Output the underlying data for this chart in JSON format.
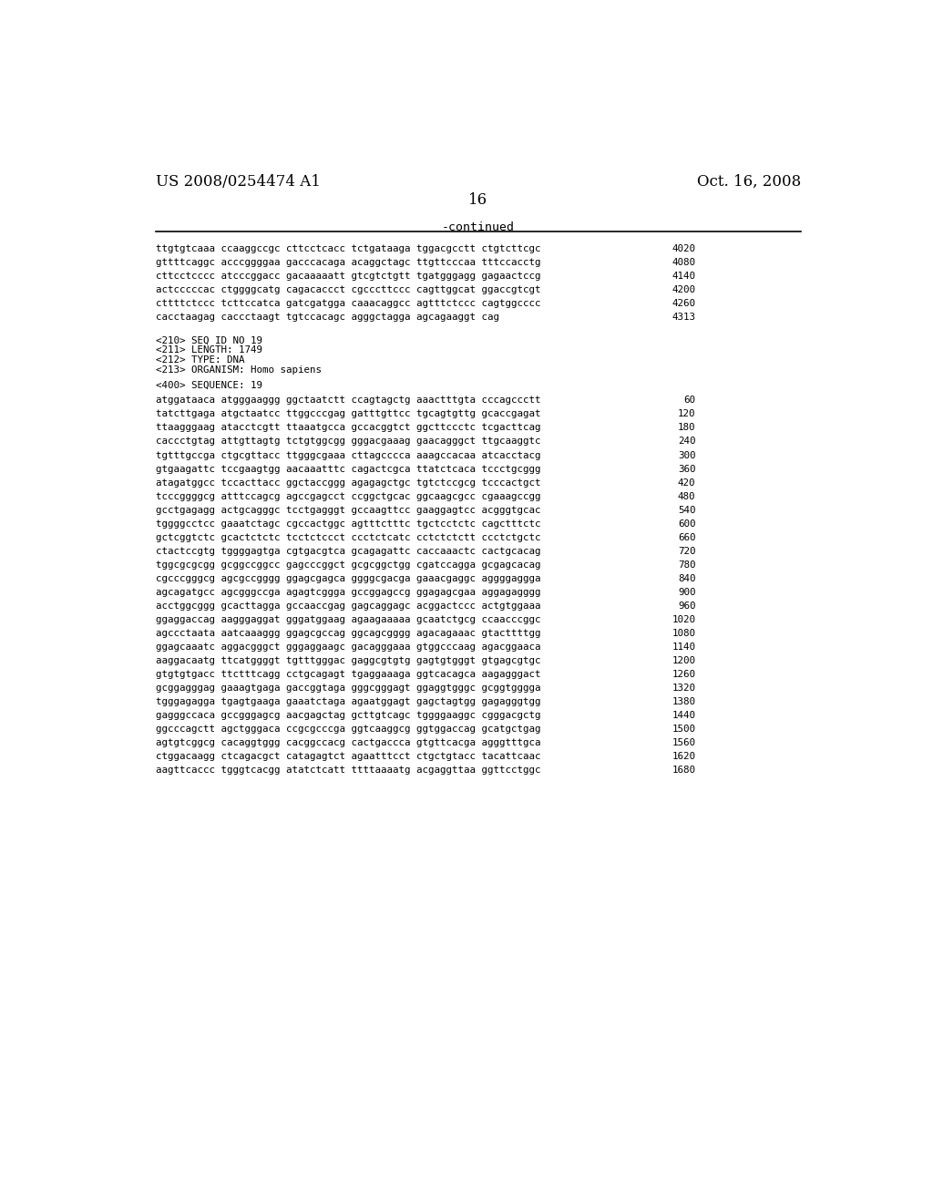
{
  "header_left": "US 2008/0254474 A1",
  "header_right": "Oct. 16, 2008",
  "page_number": "16",
  "continued_label": "-continued",
  "background_color": "#ffffff",
  "text_color": "#000000",
  "sequence_lines_top": [
    [
      "ttgtgtcaaa ccaaggccgc cttcctcacc tctgataaga tggacgcctt ctgtcttcgc",
      "4020"
    ],
    [
      "gttttcaggc acccggggaa gacccacaga acaggctagc ttgttcccaa tttccacctg",
      "4080"
    ],
    [
      "cttcctcccc atcccggacc gacaaaaatt gtcgtctgtt tgatgggagg gagaactccg",
      "4140"
    ],
    [
      "actcccccac ctggggcatg cagacaccct cgcccttccc cagttggcat ggaccgtcgt",
      "4200"
    ],
    [
      "cttttctccc tcttccatca gatcgatgga caaacaggcc agtttctccc cagtggcccc",
      "4260"
    ],
    [
      "cacctaagag caccctaagt tgtccacagc agggctagga agcagaaggt cag",
      "4313"
    ]
  ],
  "meta_lines": [
    "<210> SEQ ID NO 19",
    "<211> LENGTH: 1749",
    "<212> TYPE: DNA",
    "<213> ORGANISM: Homo sapiens"
  ],
  "sequence_label": "<400> SEQUENCE: 19",
  "sequence_lines_bottom": [
    [
      "atggataaca atgggaaggg ggctaatctt ccagtagctg aaactttgta cccagccctt",
      "60"
    ],
    [
      "tatcttgaga atgctaatcc ttggcccgag gatttgttcc tgcagtgttg gcaccgagat",
      "120"
    ],
    [
      "ttaagggaag atacctcgtt ttaaatgcca gccacggtct ggcttccctc tcgacttcag",
      "180"
    ],
    [
      "caccctgtag attgttagtg tctgtggcgg gggacgaaag gaacagggct ttgcaaggtc",
      "240"
    ],
    [
      "tgtttgccga ctgcgttacc ttgggcgaaa cttagcccca aaagccacaa atcacctacg",
      "300"
    ],
    [
      "gtgaagattc tccgaagtgg aacaaatttc cagactcgca ttatctcaca tccctgcggg",
      "360"
    ],
    [
      "atagatggcc tccacttacc ggctaccggg agagagctgc tgtctccgcg tcccactgct",
      "420"
    ],
    [
      "tcccggggcg atttccagcg agccgagcct ccggctgcac ggcaagcgcc cgaaagccgg",
      "480"
    ],
    [
      "gcctgagagg actgcagggc tcctgagggt gccaagttcc gaaggagtcc acgggtgcac",
      "540"
    ],
    [
      "tggggcctcc gaaatctagc cgccactggc agtttctttc tgctcctctc cagctttctc",
      "600"
    ],
    [
      "gctcggtctc gcactctctc tcctctccct ccctctcatc cctctctctt ccctctgctc",
      "660"
    ],
    [
      "ctactccgtg tggggagtga cgtgacgtca gcagagattc caccaaactc cactgcacag",
      "720"
    ],
    [
      "tggcgcgcgg gcggccggcc gagcccggct gcgcggctgg cgatccagga gcgagcacag",
      "780"
    ],
    [
      "cgcccgggcg agcgccgggg ggagcgagca ggggcgacga gaaacgaggc aggggaggga",
      "840"
    ],
    [
      "agcagatgcc agcgggccga agagtcggga gccggagccg ggagagcgaa aggagagggg",
      "900"
    ],
    [
      "acctggcggg gcacttagga gccaaccgag gagcaggagc acggactccc actgtggaaa",
      "960"
    ],
    [
      "ggaggaccag aagggaggat gggatggaag agaagaaaaa gcaatctgcg ccaacccggc",
      "1020"
    ],
    [
      "agccctaata aatcaaaggg ggagcgccag ggcagcgggg agacagaaac gtacttttgg",
      "1080"
    ],
    [
      "ggagcaaatc aggacgggct gggaggaagc gacagggaaa gtggcccaag agacggaaca",
      "1140"
    ],
    [
      "aaggacaatg ttcatggggt tgtttgggac gaggcgtgtg gagtgtgggt gtgagcgtgc",
      "1200"
    ],
    [
      "gtgtgtgacc ttctttcagg cctgcagagt tgaggaaaga ggtcacagca aagagggact",
      "1260"
    ],
    [
      "gcggagggag gaaagtgaga gaccggtaga gggcgggagt ggaggtgggc gcggtgggga",
      "1320"
    ],
    [
      "tgggagagga tgagtgaaga gaaatctaga agaatggagt gagctagtgg gagagggtgg",
      "1380"
    ],
    [
      "gagggccaca gccgggagcg aacgagctag gcttgtcagc tggggaaggc cgggacgctg",
      "1440"
    ],
    [
      "ggcccagctt agctgggaca ccgcgcccga ggtcaaggcg ggtggaccag gcatgctgag",
      "1500"
    ],
    [
      "agtgtcggcg cacaggtggg cacggccacg cactgaccca gtgttcacga agggtttgca",
      "1560"
    ],
    [
      "ctggacaagg ctcagacgct catagagtct agaatttcct ctgctgtacc tacattcaac",
      "1620"
    ],
    [
      "aagttcaccc tgggtcacgg atatctcatt ttttaaaatg acgaggttaa ggttcctggc",
      "1680"
    ]
  ]
}
